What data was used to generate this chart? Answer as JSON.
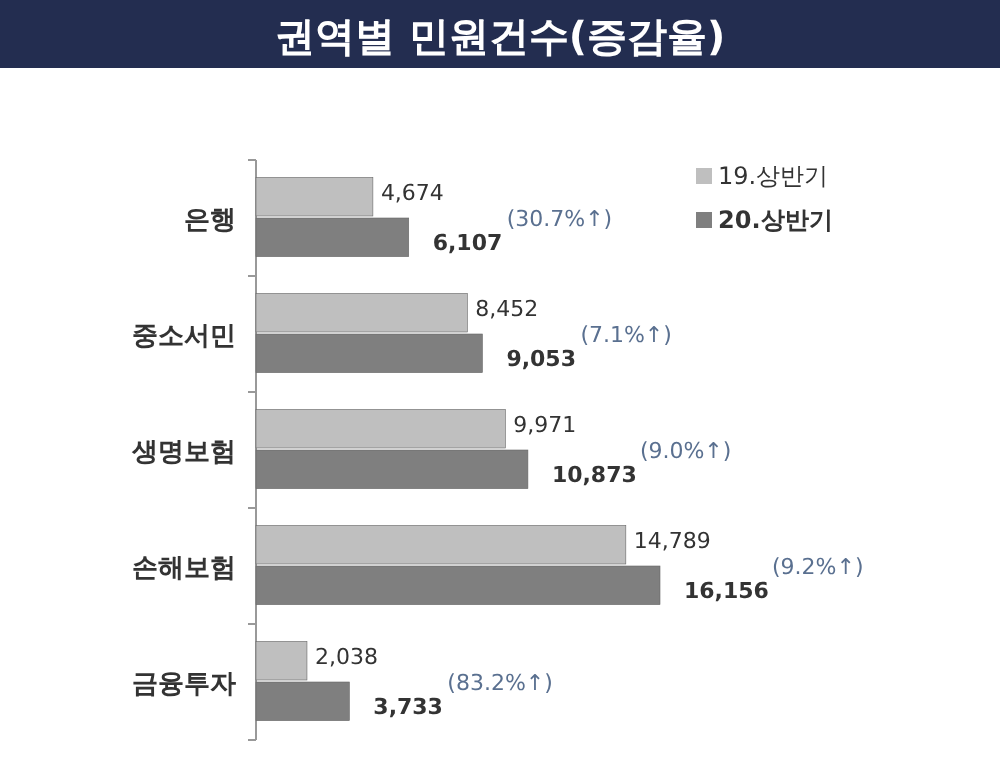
{
  "chart_data": {
    "type": "bar",
    "orientation": "horizontal",
    "title": "권역별  민원건수(증감율)",
    "categories": [
      "은행",
      "중소서민",
      "생명보험",
      "손해보험",
      "금융투자"
    ],
    "series": [
      {
        "name": "19.상반기",
        "color": "#bfbfbf",
        "values": [
          4674,
          8452,
          9971,
          14789,
          2038
        ],
        "value_labels": [
          "4,674",
          "8,452",
          "9,971",
          "14,789",
          "2,038"
        ]
      },
      {
        "name": "20.상반기",
        "color": "#7f7f7f",
        "values": [
          6107,
          9053,
          10873,
          16156,
          3733
        ],
        "value_labels": [
          "6,107",
          "9,053",
          "10,873",
          "16,156",
          "3,733"
        ]
      }
    ],
    "legend": "top right",
    "annotations": [
      "(30.7%↑)",
      "(7.1%↑)",
      "(9.0%↑)",
      "(9.2%↑)",
      "(83.2%↑)"
    ]
  }
}
